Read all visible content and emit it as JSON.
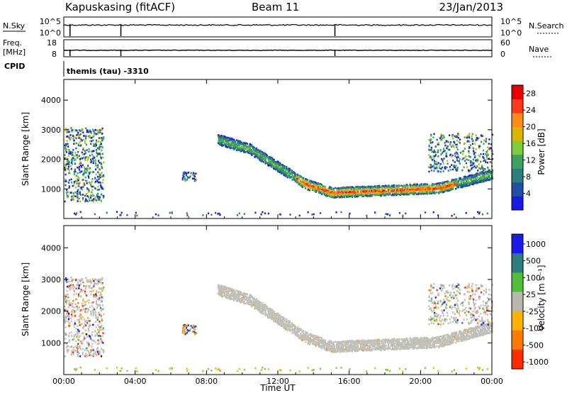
{
  "header": {
    "station": "Kapuskasing (fitACF)",
    "beam": "Beam 11",
    "date": "23/Jan/2013",
    "cpid_label": "CPID",
    "cpid_value": "themis (tau) -3310"
  },
  "panels": {
    "nsky": {
      "label": "N.Sky",
      "left_ticks": [
        "10^5",
        "10^0"
      ],
      "right_label": "N.Search",
      "right_ticks": [
        "10^5",
        "10^0"
      ]
    },
    "freq": {
      "label_lines": [
        "Freq.",
        "[MHz]"
      ],
      "left_ticks": [
        "18",
        "8"
      ],
      "right_label": "Nave",
      "right_ticks": [
        "60",
        "0"
      ]
    }
  },
  "chart_data": [
    {
      "type": "heatmap",
      "title": "",
      "xlabel": "",
      "ylabel": "Slant Range [km]",
      "y_ticks": [
        1000,
        2000,
        3000,
        4000
      ],
      "ylim": [
        0,
        4700
      ],
      "colorbar": {
        "label": "Power [dB]",
        "ticks": [
          "4",
          "8",
          "12",
          "16",
          "20",
          "24",
          "28"
        ],
        "range": [
          0,
          30
        ]
      },
      "x_ticks": [
        "00:00",
        "04:00",
        "08:00",
        "12:00",
        "16:00",
        "20:00",
        "00:00"
      ],
      "xlim_hours": [
        0,
        24
      ]
    },
    {
      "type": "heatmap",
      "title": "",
      "xlabel": "Time UT",
      "ylabel": "Slant Range [km]",
      "y_ticks": [
        1000,
        2000,
        3000,
        4000
      ],
      "ylim": [
        0,
        4700
      ],
      "colorbar": {
        "label": "Velocity [m s⁻¹]",
        "ticks": [
          "1000",
          "500",
          "100",
          "25",
          "-25",
          "-100",
          "-500",
          "-1000"
        ],
        "range": [
          -1000,
          1000
        ]
      },
      "x_ticks": [
        "00:00",
        "04:00",
        "08:00",
        "12:00",
        "16:00",
        "20:00",
        "00:00"
      ],
      "xlim_hours": [
        0,
        24
      ]
    }
  ],
  "colors": {
    "power_scale": [
      "#1a1ae6",
      "#1f4fa8",
      "#2e7d7d",
      "#3fa060",
      "#7ccd3a",
      "#d9b500",
      "#ff8c1a",
      "#ff3a1a",
      "#e60000"
    ],
    "velocity_scale": [
      "#1a1ae6",
      "#2e7d7d",
      "#4fbf3a",
      "#b8b8b0",
      "#ffb300",
      "#ff7a00",
      "#ff2a00"
    ],
    "ground_scatter": "#c0c0b8"
  }
}
